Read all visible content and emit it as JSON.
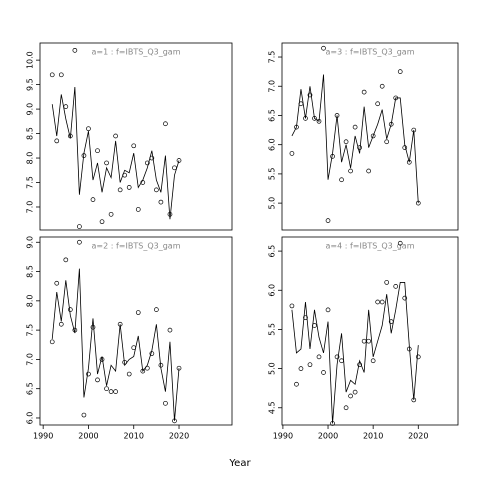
{
  "xlabel": "Year",
  "chart_data": [
    {
      "type": "line",
      "title": "a=1  :  f=IBTS_Q3_gam",
      "x": [
        1992,
        1993,
        1994,
        1995,
        1996,
        1997,
        1998,
        1999,
        2000,
        2001,
        2002,
        2003,
        2004,
        2005,
        2006,
        2007,
        2008,
        2009,
        2010,
        2011,
        2012,
        2013,
        2014,
        2015,
        2016,
        2017,
        2018,
        2019,
        2020
      ],
      "xlim": [
        1989.3,
        2031.7
      ],
      "ylim": [
        6.53,
        10.35
      ],
      "yticks": [
        {
          "value": 7.0,
          "label": "7.0"
        },
        {
          "value": 7.5,
          "label": "7.5"
        },
        {
          "value": 8.0,
          "label": "8.0"
        },
        {
          "value": 8.5,
          "label": "8.5"
        },
        {
          "value": 9.0,
          "label": "9.0"
        },
        {
          "value": 9.5,
          "label": "9.5"
        },
        {
          "value": 10.0,
          "label": "10.0"
        }
      ],
      "series": [
        {
          "style": "points",
          "color": "#000000",
          "values": [
            9.7,
            8.35,
            9.7,
            9.05,
            8.45,
            10.2,
            6.6,
            8.05,
            8.6,
            7.15,
            8.15,
            6.7,
            7.9,
            6.85,
            8.45,
            7.35,
            7.65,
            7.4,
            8.25,
            6.95,
            7.5,
            7.9,
            8.0,
            7.35,
            7.1,
            8.7,
            6.85,
            7.8,
            7.95
          ]
        },
        {
          "style": "line",
          "color": "#000000",
          "values": [
            9.1,
            8.45,
            9.3,
            8.8,
            8.4,
            9.45,
            7.25,
            8.1,
            8.55,
            7.55,
            7.9,
            7.3,
            7.8,
            7.6,
            8.35,
            7.5,
            7.75,
            7.7,
            8.1,
            7.4,
            7.55,
            7.8,
            8.15,
            7.55,
            7.3,
            8.05,
            6.75,
            7.65,
            7.95
          ]
        }
      ]
    },
    {
      "type": "line",
      "title": "a=3  :  f=IBTS_Q3_gam",
      "x": [
        1992,
        1993,
        1994,
        1995,
        1996,
        1997,
        1998,
        1999,
        2000,
        2001,
        2002,
        2003,
        2004,
        2005,
        2006,
        2007,
        2008,
        2009,
        2010,
        2011,
        2012,
        2013,
        2014,
        2015,
        2016,
        2017,
        2018,
        2019,
        2020
      ],
      "xlim": [
        1989.8,
        2028.8
      ],
      "ylim": [
        4.54,
        7.74
      ],
      "yticks": [
        {
          "value": 5.0,
          "label": "5.0"
        },
        {
          "value": 5.5,
          "label": "5.5"
        },
        {
          "value": 6.0,
          "label": "6.0"
        },
        {
          "value": 6.5,
          "label": "6.5"
        },
        {
          "value": 7.0,
          "label": "7.0"
        },
        {
          "value": 7.5,
          "label": "7.5"
        }
      ],
      "series": [
        {
          "style": "points",
          "color": "#000000",
          "values": [
            5.85,
            6.3,
            6.7,
            6.45,
            6.85,
            6.45,
            6.4,
            7.65,
            4.7,
            5.8,
            6.5,
            5.4,
            6.05,
            5.55,
            6.3,
            5.95,
            6.9,
            5.55,
            6.15,
            6.7,
            7.0,
            6.05,
            6.35,
            6.8,
            7.25,
            5.95,
            5.7,
            6.25,
            5.0
          ]
        },
        {
          "style": "line",
          "color": "#000000",
          "values": [
            6.15,
            6.3,
            6.95,
            6.45,
            7.0,
            6.45,
            6.4,
            7.2,
            5.4,
            5.85,
            6.5,
            5.7,
            6.0,
            5.6,
            6.15,
            5.85,
            6.65,
            5.95,
            6.15,
            6.35,
            6.6,
            6.1,
            6.35,
            6.8,
            6.8,
            6.0,
            5.7,
            6.25,
            5.0
          ]
        }
      ]
    },
    {
      "type": "line",
      "title": "a=2  :  f=IBTS_Q3_gam",
      "x": [
        1992,
        1993,
        1994,
        1995,
        1996,
        1997,
        1998,
        1999,
        2000,
        2001,
        2002,
        2003,
        2004,
        2005,
        2006,
        2007,
        2008,
        2009,
        2010,
        2011,
        2012,
        2013,
        2014,
        2015,
        2016,
        2017,
        2018,
        2019,
        2020
      ],
      "xlim": [
        1989.3,
        2031.7
      ],
      "ylim": [
        5.88,
        9.09
      ],
      "xticks": [
        1990,
        2000,
        2010,
        2020
      ],
      "yticks": [
        {
          "value": 6.0,
          "label": "6.0"
        },
        {
          "value": 6.5,
          "label": "6.5"
        },
        {
          "value": 7.0,
          "label": "7.0"
        },
        {
          "value": 7.5,
          "label": "7.5"
        },
        {
          "value": 8.0,
          "label": "8.0"
        },
        {
          "value": 8.5,
          "label": "8.5"
        },
        {
          "value": 9.0,
          "label": "9.0"
        }
      ],
      "series": [
        {
          "style": "points",
          "color": "#000000",
          "values": [
            7.3,
            8.3,
            7.6,
            8.7,
            7.85,
            7.5,
            9.0,
            6.05,
            6.75,
            7.55,
            6.65,
            7.0,
            6.5,
            6.45,
            6.45,
            7.6,
            6.95,
            6.75,
            7.2,
            7.8,
            6.8,
            6.85,
            7.1,
            7.85,
            6.9,
            6.25,
            7.5,
            5.95,
            6.85
          ]
        },
        {
          "style": "line",
          "color": "#000000",
          "values": [
            7.35,
            8.15,
            7.65,
            8.35,
            7.75,
            7.45,
            8.55,
            6.35,
            6.85,
            7.7,
            6.75,
            7.05,
            6.55,
            6.9,
            6.8,
            7.6,
            6.9,
            7.0,
            7.05,
            7.4,
            6.8,
            6.9,
            7.15,
            7.6,
            6.85,
            6.45,
            7.3,
            5.95,
            6.85
          ]
        }
      ]
    },
    {
      "type": "line",
      "title": "a=4  :  f=IBTS_Q3_gam",
      "x": [
        1992,
        1993,
        1994,
        1995,
        1996,
        1997,
        1998,
        1999,
        2000,
        2001,
        2002,
        2003,
        2004,
        2005,
        2006,
        2007,
        2008,
        2009,
        2010,
        2011,
        2012,
        2013,
        2014,
        2015,
        2016,
        2017,
        2018,
        2019,
        2020
      ],
      "xlim": [
        1989.8,
        2028.8
      ],
      "ylim": [
        4.28,
        6.68
      ],
      "xticks": [
        1990,
        2000,
        2010,
        2020
      ],
      "yticks": [
        {
          "value": 4.5,
          "label": "4.5"
        },
        {
          "value": 5.0,
          "label": "5.0"
        },
        {
          "value": 5.5,
          "label": "5.5"
        },
        {
          "value": 6.0,
          "label": "6.0"
        },
        {
          "value": 6.5,
          "label": "6.5"
        }
      ],
      "series": [
        {
          "style": "points",
          "color": "#000000",
          "values": [
            5.8,
            4.8,
            5.0,
            5.65,
            5.05,
            5.55,
            5.15,
            4.95,
            5.75,
            4.3,
            5.15,
            5.1,
            4.5,
            4.65,
            4.7,
            5.05,
            5.35,
            5.35,
            5.1,
            5.85,
            5.85,
            6.1,
            5.6,
            6.05,
            6.6,
            5.9,
            5.25,
            4.6,
            5.15
          ]
        },
        {
          "style": "line",
          "color": "#000000",
          "values": [
            5.75,
            5.2,
            5.25,
            5.85,
            5.25,
            5.75,
            5.4,
            5.2,
            5.6,
            4.3,
            5.05,
            5.45,
            4.7,
            4.85,
            4.8,
            5.1,
            4.95,
            5.75,
            5.15,
            5.35,
            5.55,
            5.95,
            5.45,
            5.75,
            6.1,
            6.1,
            5.3,
            4.6,
            5.3
          ]
        }
      ]
    }
  ]
}
